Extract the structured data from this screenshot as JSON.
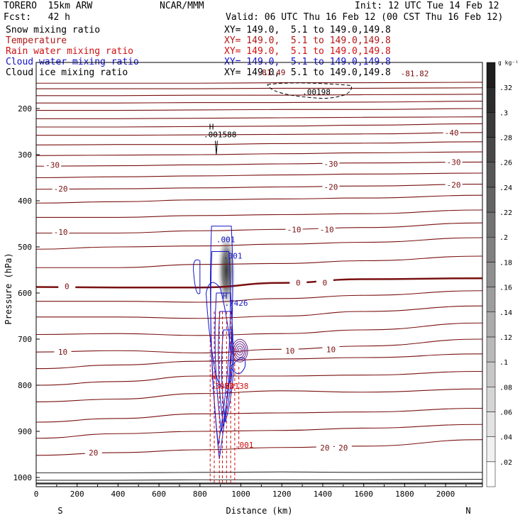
{
  "header": {
    "title": "TORERO  15km ARW",
    "center": "NCAR/MMM",
    "init": "Init: 12 UTC Tue 14 Feb 12",
    "fcst": "Fcst:   42 h",
    "valid": "Valid: 06 UTC Thu 16 Feb 12 (00 CST Thu 16 Feb 12)",
    "fields": [
      {
        "name": "Snow mixing ratio",
        "xy": "XY= 149.0,  5.1 to 149.0,149.8",
        "color": "#000000"
      },
      {
        "name": "Temperature",
        "xy": "XY= 149.0,  5.1 to 149.0,149.8",
        "color": "#b01818"
      },
      {
        "name": "Rain water mixing ratio",
        "xy": "XY= 149.0,  5.1 to 149.0,149.8",
        "color": "#d01010"
      },
      {
        "name": "Cloud water mixing ratio",
        "xy": "XY= 149.0,  5.1 to 149.0,149.8",
        "color": "#1010c8"
      },
      {
        "name": "Cloud ice mixing ratio",
        "xy": "XY= 149.0,  5.1 to 149.0,149.8",
        "color": "#000000"
      }
    ]
  },
  "chart_data": {
    "type": "heatmap",
    "xlabel": "Distance (km)",
    "ylabel": "Pressure (hPa)",
    "xlim": [
      0,
      2180
    ],
    "ylim": [
      1020,
      100
    ],
    "x_ticks": [
      0,
      200,
      400,
      600,
      800,
      1000,
      1200,
      1400,
      1600,
      1800,
      2000
    ],
    "y_ticks": [
      200,
      300,
      400,
      500,
      600,
      700,
      800,
      900,
      1000
    ],
    "x_end_labels": {
      "left": "S",
      "right": "N"
    },
    "colorbar": {
      "unit": "g kg⁻¹",
      "ticks": [
        ".02",
        ".04",
        ".06",
        ".08",
        ".1",
        ".12",
        ".14",
        ".16",
        ".18",
        ".2",
        ".22",
        ".24",
        ".26",
        ".28",
        ".3",
        ".32"
      ],
      "levels": [
        0,
        0.02,
        0.04,
        0.06,
        0.08,
        0.1,
        0.12,
        0.14,
        0.16,
        0.18,
        0.2,
        0.22,
        0.24,
        0.26,
        0.28,
        0.3,
        0.32,
        0.34
      ]
    },
    "temperature_contours": [
      {
        "p": [
          1013,
          1013,
          1013,
          1013,
          1013,
          1013
        ],
        "label": null
      },
      {
        "p": [
          1006,
          1006,
          1005,
          1005,
          1005,
          1004
        ],
        "label": null
      },
      {
        "p": [
          990,
          990,
          989,
          988,
          989,
          989
        ],
        "label": null
      },
      {
        "p": [
          952,
          946,
          940,
          935,
          932,
          918
        ],
        "label": "20",
        "label_pos": [
          [
            280,
            946
          ],
          [
            1410,
            935
          ],
          [
            1500,
            935
          ]
        ]
      },
      {
        "p": [
          915,
          905,
          900,
          898,
          893,
          885
        ],
        "label": null
      },
      {
        "p": [
          880,
          872,
          862,
          860,
          858,
          850
        ],
        "label": null
      },
      {
        "p": [
          836,
          830,
          818,
          812,
          815,
          808
        ],
        "label": null
      },
      {
        "p": [
          800,
          792,
          780,
          780,
          778,
          770
        ],
        "label": null
      },
      {
        "p": [
          764,
          756,
          748,
          743,
          740,
          732
        ],
        "label": null
      },
      {
        "p": [
          728,
          725,
          730,
          722,
          715,
          700
        ],
        "label": "10",
        "label_pos": [
          [
            130,
            728
          ],
          [
            1240,
            725
          ],
          [
            1440,
            722
          ]
        ]
      },
      {
        "p": [
          690,
          688,
          692,
          688,
          680,
          665
        ],
        "label": null
      },
      {
        "p": [
          652,
          652,
          655,
          650,
          640,
          628
        ],
        "label": null
      },
      {
        "p": [
          618,
          618,
          620,
          612,
          605,
          595
        ],
        "label": null
      },
      {
        "p": [
          587,
          588,
          588,
          578,
          570,
          568
        ],
        "label": "0",
        "label_pos": [
          [
            150,
            585
          ],
          [
            1280,
            578
          ],
          [
            1410,
            578
          ]
        ],
        "bold": true
      },
      {
        "p": [
          545,
          545,
          538,
          536,
          530,
          520
        ],
        "label": null
      },
      {
        "p": [
          505,
          500,
          498,
          494,
          490,
          480
        ],
        "label": null
      },
      {
        "p": [
          470,
          470,
          465,
          462,
          458,
          448
        ],
        "label": "-10",
        "label_pos": [
          [
            120,
            468
          ],
          [
            1260,
            462
          ],
          [
            1420,
            462
          ]
        ]
      },
      {
        "p": [
          436,
          436,
          432,
          430,
          428,
          420
        ],
        "label": null
      },
      {
        "p": [
          405,
          402,
          398,
          396,
          394,
          388
        ],
        "label": null
      },
      {
        "p": [
          375,
          374,
          372,
          370,
          368,
          364
        ],
        "label": "-20",
        "label_pos": [
          [
            120,
            374
          ],
          [
            1440,
            370
          ],
          [
            2040,
            365
          ]
        ]
      },
      {
        "p": [
          350,
          348,
          346,
          344,
          342,
          340
        ],
        "label": null
      },
      {
        "p": [
          325,
          324,
          322,
          320,
          318,
          316
        ],
        "label": "-30",
        "label_pos": [
          [
            80,
            322
          ],
          [
            1440,
            320
          ],
          [
            2040,
            316
          ]
        ]
      },
      {
        "p": [
          302,
          301,
          300,
          298,
          296,
          294
        ],
        "label": null
      },
      {
        "p": [
          279,
          278,
          278,
          276,
          275,
          272
        ],
        "label": null
      },
      {
        "p": [
          258,
          258,
          257,
          256,
          255,
          252
        ],
        "label": "-40",
        "label_pos": [
          [
            2030,
            252
          ]
        ]
      },
      {
        "p": [
          240,
          240,
          239,
          238,
          236,
          233
        ],
        "label": null
      },
      {
        "p": [
          222,
          222,
          221,
          220,
          219,
          218
        ],
        "label": null
      },
      {
        "p": [
          204,
          204,
          203,
          202,
          202,
          200
        ],
        "label": null
      },
      {
        "p": [
          188,
          188,
          187,
          187,
          186,
          184
        ],
        "label": null
      },
      {
        "p": [
          172,
          172,
          171,
          171,
          170,
          169
        ],
        "label": null
      },
      {
        "p": [
          157,
          157,
          157,
          156,
          156,
          155
        ],
        "label": null
      },
      {
        "p": [
          145,
          145,
          145,
          144,
          144,
          143
        ],
        "label": null
      }
    ],
    "contour_x": [
      0,
      400,
      800,
      1200,
      1600,
      2180
    ],
    "snow_center_label": {
      "text": "H",
      "value": ".7426"
    },
    "cloud_water_labels": [
      ".001",
      ".001"
    ],
    "rain_labels": [
      ".3053",
      ".00138",
      ".001"
    ],
    "ice_labels": [
      ".001588",
      ".00198"
    ],
    "ice_max_label": "H",
    "top_labels": [
      "-81.49",
      "-81.82"
    ]
  }
}
